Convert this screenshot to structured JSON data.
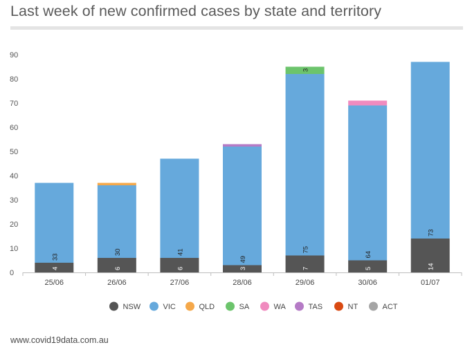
{
  "title": "Last week of new confirmed cases by state and territory",
  "source": "www.covid19data.com.au",
  "chart_data": {
    "type": "bar",
    "stacked": true,
    "categories": [
      "25/06",
      "26/06",
      "27/06",
      "28/06",
      "29/06",
      "30/06",
      "01/07"
    ],
    "y_ticks": [
      0,
      10,
      20,
      30,
      40,
      50,
      60,
      70,
      80,
      90
    ],
    "ylim": [
      0,
      90
    ],
    "grid": false,
    "legend_position": "bottom",
    "series": [
      {
        "name": "NSW",
        "color": "#555555",
        "values": [
          4,
          6,
          6,
          3,
          7,
          5,
          14
        ],
        "labels": [
          "4",
          "6",
          "6",
          "3",
          "7",
          "5",
          "14"
        ]
      },
      {
        "name": "VIC",
        "color": "#66a9dc",
        "values": [
          33,
          30,
          41,
          49,
          75,
          64,
          73
        ],
        "labels": [
          "33",
          "30",
          "41",
          "49",
          "75",
          "64",
          "73"
        ]
      },
      {
        "name": "QLD",
        "color": "#f5a84a",
        "values": [
          0,
          1,
          0,
          0,
          0,
          0,
          0
        ],
        "labels": [
          "",
          "",
          "",
          "",
          "",
          "",
          ""
        ]
      },
      {
        "name": "SA",
        "color": "#6cc46c",
        "values": [
          0,
          0,
          0,
          0,
          3,
          0,
          0
        ],
        "labels": [
          "",
          "",
          "",
          "",
          "3",
          "",
          ""
        ]
      },
      {
        "name": "WA",
        "color": "#f08bbf",
        "values": [
          0,
          0,
          0,
          0,
          0,
          2,
          0
        ],
        "labels": [
          "",
          "",
          "",
          "",
          "",
          "",
          ""
        ]
      },
      {
        "name": "TAS",
        "color": "#b57bc6",
        "values": [
          0,
          0,
          0,
          1,
          0,
          0,
          0
        ],
        "labels": [
          "",
          "",
          "",
          "",
          "",
          "",
          ""
        ]
      },
      {
        "name": "NT",
        "color": "#d94a12",
        "values": [
          0,
          0,
          0,
          0,
          0,
          0,
          0
        ],
        "labels": [
          "",
          "",
          "",
          "",
          "",
          "",
          ""
        ]
      },
      {
        "name": "ACT",
        "color": "#a5a5a5",
        "values": [
          0,
          0,
          0,
          0,
          0,
          0,
          0
        ],
        "labels": [
          "",
          "",
          "",
          "",
          "",
          "",
          ""
        ]
      }
    ]
  }
}
